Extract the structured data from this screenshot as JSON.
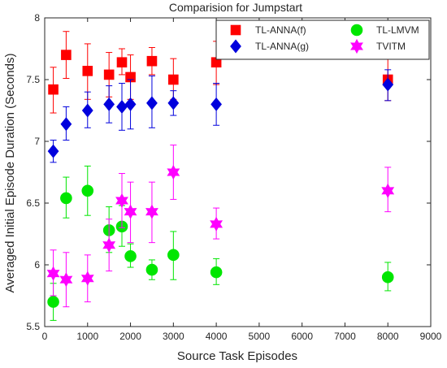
{
  "chart_data": {
    "type": "scatter",
    "title": "Comparision for Jumpstart",
    "xlabel": "Source Task Episodes",
    "ylabel": "Averaged Initial Episode Duration (Seconds)",
    "xlim": [
      0,
      9000
    ],
    "ylim": [
      5.5,
      8
    ],
    "xticks": [
      0,
      1000,
      2000,
      3000,
      4000,
      5000,
      6000,
      7000,
      8000,
      9000
    ],
    "xtick_labels": [
      "0",
      "1000",
      "2000",
      "3000",
      "4000",
      "5000",
      "6000",
      "7000",
      "8000",
      "9000"
    ],
    "yticks": [
      5.5,
      6,
      6.5,
      7,
      7.5,
      8
    ],
    "ytick_labels": [
      "5.5",
      "6",
      "6.5",
      "7",
      "7.5",
      "8"
    ],
    "grid": false,
    "legend_position": "top",
    "series": [
      {
        "name": "TL-ANNA(f)",
        "color": "#ff0000",
        "marker": "square",
        "x": [
          200,
          500,
          1000,
          1500,
          1800,
          2000,
          2500,
          3000,
          4000,
          8000
        ],
        "y": [
          7.42,
          7.7,
          7.57,
          7.54,
          7.64,
          7.52,
          7.65,
          7.5,
          7.64,
          7.5
        ],
        "err_low": [
          7.23,
          7.51,
          7.34,
          7.36,
          7.54,
          7.34,
          7.54,
          7.34,
          7.46,
          7.33
        ],
        "err_high": [
          7.6,
          7.89,
          7.79,
          7.72,
          7.75,
          7.7,
          7.76,
          7.67,
          7.81,
          7.67
        ]
      },
      {
        "name": "TL-ANNA(g)",
        "color": "#0000dd",
        "marker": "diamond",
        "x": [
          200,
          500,
          1000,
          1500,
          1800,
          2000,
          2500,
          3000,
          4000,
          8000
        ],
        "y": [
          6.92,
          7.14,
          7.25,
          7.3,
          7.28,
          7.3,
          7.31,
          7.31,
          7.3,
          7.46
        ],
        "err_low": [
          6.83,
          7.01,
          7.11,
          7.15,
          7.09,
          7.1,
          7.11,
          7.21,
          7.13,
          7.33
        ],
        "err_high": [
          7.01,
          7.28,
          7.4,
          7.45,
          7.47,
          7.5,
          7.53,
          7.41,
          7.47,
          7.58
        ]
      },
      {
        "name": "TL-LMVM",
        "color": "#00e600",
        "marker": "circle",
        "x": [
          200,
          500,
          1000,
          1500,
          1800,
          2000,
          2500,
          3000,
          4000,
          8000
        ],
        "y": [
          5.7,
          6.54,
          6.6,
          6.28,
          6.31,
          6.07,
          5.96,
          6.08,
          5.94,
          5.9
        ],
        "err_low": [
          5.55,
          6.38,
          6.4,
          6.1,
          6.15,
          5.98,
          5.88,
          5.88,
          5.84,
          5.79
        ],
        "err_high": [
          5.85,
          6.71,
          6.8,
          6.47,
          6.48,
          6.17,
          6.04,
          6.27,
          6.05,
          6.02
        ]
      },
      {
        "name": "TVITM",
        "color": "#ff00ff",
        "marker": "hexagram",
        "x": [
          200,
          500,
          1000,
          1500,
          1800,
          2000,
          2500,
          3000,
          4000,
          8000
        ],
        "y": [
          5.93,
          5.88,
          5.89,
          6.16,
          6.52,
          6.43,
          6.43,
          6.75,
          6.33,
          6.6
        ],
        "err_low": [
          5.75,
          5.66,
          5.7,
          5.95,
          6.3,
          6.18,
          6.18,
          6.53,
          6.21,
          6.43
        ],
        "err_high": [
          6.12,
          6.1,
          6.08,
          6.37,
          6.74,
          6.67,
          6.67,
          6.97,
          6.46,
          6.79
        ]
      }
    ]
  }
}
